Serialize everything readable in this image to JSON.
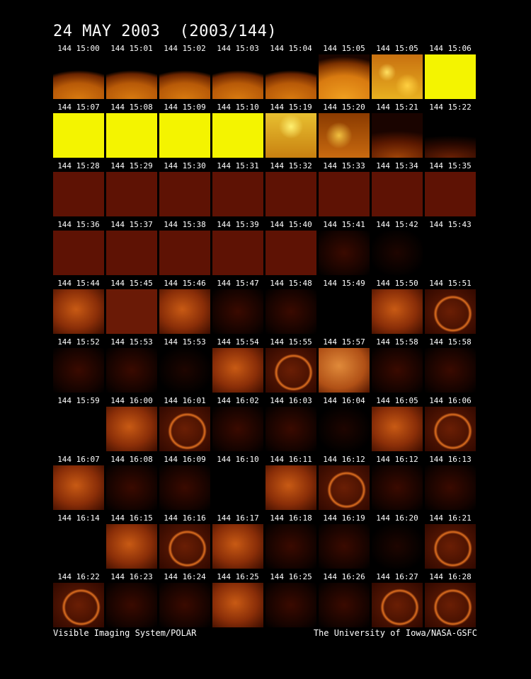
{
  "header": {
    "title": "24 MAY 2003  (2003/144)"
  },
  "frames": [
    {
      "label": "144 15:00",
      "style": "dayglow"
    },
    {
      "label": "144 15:01",
      "style": "dayglow"
    },
    {
      "label": "144 15:02",
      "style": "dayglow"
    },
    {
      "label": "144 15:03",
      "style": "dayglow"
    },
    {
      "label": "144 15:04",
      "style": "dayglow"
    },
    {
      "label": "144 15:05",
      "style": "dayglow2"
    },
    {
      "label": "144 15:05",
      "style": "speckle"
    },
    {
      "label": "144 15:06",
      "style": "yellow"
    },
    {
      "label": "144 15:07",
      "style": "yellow"
    },
    {
      "label": "144 15:08",
      "style": "yellow"
    },
    {
      "label": "144 15:09",
      "style": "yellow"
    },
    {
      "label": "144 15:10",
      "style": "yellow"
    },
    {
      "label": "144 15:19",
      "style": "speckle2"
    },
    {
      "label": "144 15:20",
      "style": "speckle3"
    },
    {
      "label": "144 15:21",
      "style": "limb"
    },
    {
      "label": "144 15:22",
      "style": "limbdim"
    },
    {
      "label": "144 15:28",
      "style": "red"
    },
    {
      "label": "144 15:29",
      "style": "red"
    },
    {
      "label": "144 15:30",
      "style": "red"
    },
    {
      "label": "144 15:31",
      "style": "red"
    },
    {
      "label": "144 15:32",
      "style": "red"
    },
    {
      "label": "144 15:33",
      "style": "red"
    },
    {
      "label": "144 15:34",
      "style": "red"
    },
    {
      "label": "144 15:35",
      "style": "red"
    },
    {
      "label": "144 15:36",
      "style": "red"
    },
    {
      "label": "144 15:37",
      "style": "red"
    },
    {
      "label": "144 15:38",
      "style": "red"
    },
    {
      "label": "144 15:39",
      "style": "red"
    },
    {
      "label": "144 15:40",
      "style": "red"
    },
    {
      "label": "144 15:41",
      "style": "faint"
    },
    {
      "label": "144 15:42",
      "style": "vfaint"
    },
    {
      "label": "144 15:43",
      "style": "empty"
    },
    {
      "label": "144 15:44",
      "style": "glow"
    },
    {
      "label": "144 15:45",
      "style": "red2"
    },
    {
      "label": "144 15:46",
      "style": "glow"
    },
    {
      "label": "144 15:47",
      "style": "faint"
    },
    {
      "label": "144 15:48",
      "style": "faint"
    },
    {
      "label": "144 15:49",
      "style": "empty"
    },
    {
      "label": "144 15:50",
      "style": "glow"
    },
    {
      "label": "144 15:51",
      "style": "arc"
    },
    {
      "label": "144 15:52",
      "style": "faint"
    },
    {
      "label": "144 15:53",
      "style": "faint"
    },
    {
      "label": "144 15:53",
      "style": "vfaint"
    },
    {
      "label": "144 15:54",
      "style": "glow"
    },
    {
      "label": "144 15:55",
      "style": "arc"
    },
    {
      "label": "144 15:57",
      "style": "glow2"
    },
    {
      "label": "144 15:58",
      "style": "faint"
    },
    {
      "label": "144 15:58",
      "style": "faint"
    },
    {
      "label": "144 15:59",
      "style": "empty"
    },
    {
      "label": "144 16:00",
      "style": "glow"
    },
    {
      "label": "144 16:01",
      "style": "arc"
    },
    {
      "label": "144 16:02",
      "style": "faint"
    },
    {
      "label": "144 16:03",
      "style": "faint"
    },
    {
      "label": "144 16:04",
      "style": "vfaint"
    },
    {
      "label": "144 16:05",
      "style": "glow"
    },
    {
      "label": "144 16:06",
      "style": "arc"
    },
    {
      "label": "144 16:07",
      "style": "glow"
    },
    {
      "label": "144 16:08",
      "style": "faint"
    },
    {
      "label": "144 16:09",
      "style": "faint"
    },
    {
      "label": "144 16:10",
      "style": "empty"
    },
    {
      "label": "144 16:11",
      "style": "glow"
    },
    {
      "label": "144 16:12",
      "style": "arc"
    },
    {
      "label": "144 16:12",
      "style": "faint"
    },
    {
      "label": "144 16:13",
      "style": "faint"
    },
    {
      "label": "144 16:14",
      "style": "empty"
    },
    {
      "label": "144 16:15",
      "style": "glow"
    },
    {
      "label": "144 16:16",
      "style": "arc"
    },
    {
      "label": "144 16:17",
      "style": "glow"
    },
    {
      "label": "144 16:18",
      "style": "faint"
    },
    {
      "label": "144 16:19",
      "style": "faint"
    },
    {
      "label": "144 16:20",
      "style": "vfaint"
    },
    {
      "label": "144 16:21",
      "style": "arc"
    },
    {
      "label": "144 16:22",
      "style": "arc"
    },
    {
      "label": "144 16:23",
      "style": "faint"
    },
    {
      "label": "144 16:24",
      "style": "faint"
    },
    {
      "label": "144 16:25",
      "style": "glow"
    },
    {
      "label": "144 16:25",
      "style": "faint"
    },
    {
      "label": "144 16:26",
      "style": "faint"
    },
    {
      "label": "144 16:27",
      "style": "arc"
    },
    {
      "label": "144 16:28",
      "style": "arc"
    }
  ],
  "footer": {
    "left": "Visible Imaging System/POLAR",
    "right": "The University of Iowa/NASA-GSFC"
  }
}
